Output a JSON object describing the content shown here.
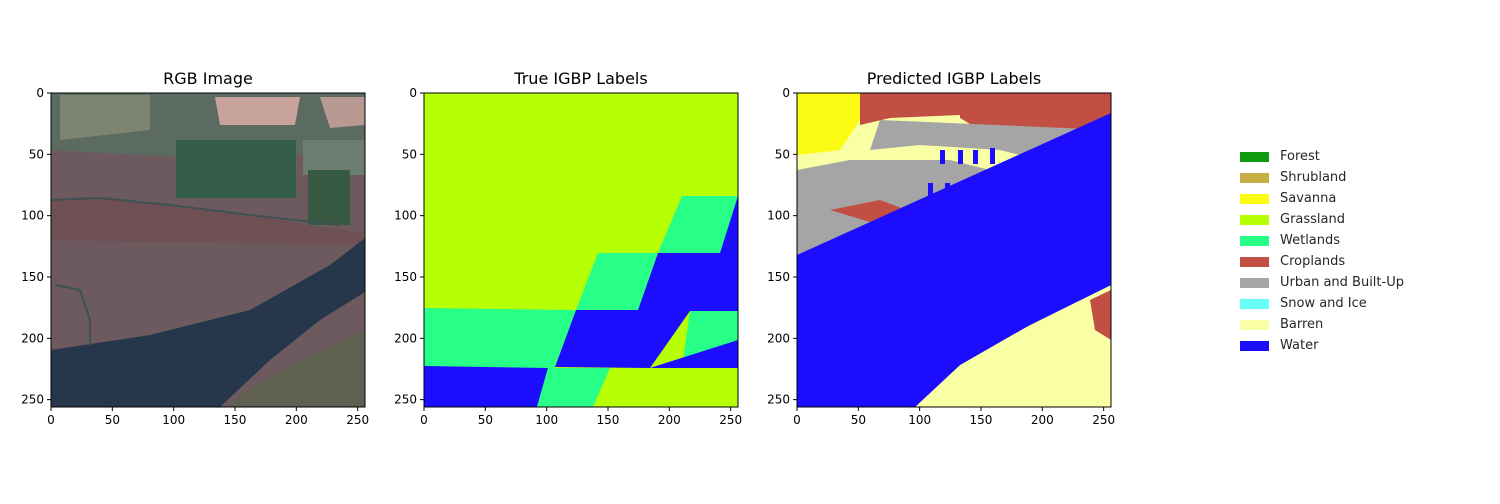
{
  "chart_data": [
    {
      "type": "heatmap",
      "title": "RGB Image",
      "xlim": [
        0,
        256
      ],
      "ylim": [
        256,
        0
      ],
      "xticks": [
        "0",
        "50",
        "100",
        "150",
        "200",
        "250"
      ],
      "yticks": [
        "0",
        "50",
        "100",
        "150",
        "200",
        "250"
      ]
    },
    {
      "type": "heatmap",
      "title": "True IGBP Labels",
      "xlim": [
        0,
        256
      ],
      "ylim": [
        256,
        0
      ],
      "xticks": [
        "0",
        "50",
        "100",
        "150",
        "200",
        "250"
      ],
      "yticks": [
        "0",
        "50",
        "100",
        "150",
        "200",
        "250"
      ]
    },
    {
      "type": "heatmap",
      "title": "Predicted IGBP Labels",
      "xlim": [
        0,
        256
      ],
      "ylim": [
        256,
        0
      ],
      "xticks": [
        "0",
        "50",
        "100",
        "150",
        "200",
        "250"
      ],
      "yticks": [
        "0",
        "50",
        "100",
        "150",
        "200",
        "250"
      ]
    }
  ],
  "legend": [
    {
      "label": "Forest",
      "color": "#0f9a0f"
    },
    {
      "label": "Shrubland",
      "color": "#c6ad45"
    },
    {
      "label": "Savanna",
      "color": "#fbfb13"
    },
    {
      "label": "Grassland",
      "color": "#b6ff05"
    },
    {
      "label": "Wetlands",
      "color": "#27ff87"
    },
    {
      "label": "Croplands",
      "color": "#c24f44"
    },
    {
      "label": "Urban and Built-Up",
      "color": "#a5a5a5"
    },
    {
      "label": "Snow and Ice",
      "color": "#69fff8"
    },
    {
      "label": "Barren",
      "color": "#f9ffa4"
    },
    {
      "label": "Water",
      "color": "#1c0dff"
    }
  ]
}
